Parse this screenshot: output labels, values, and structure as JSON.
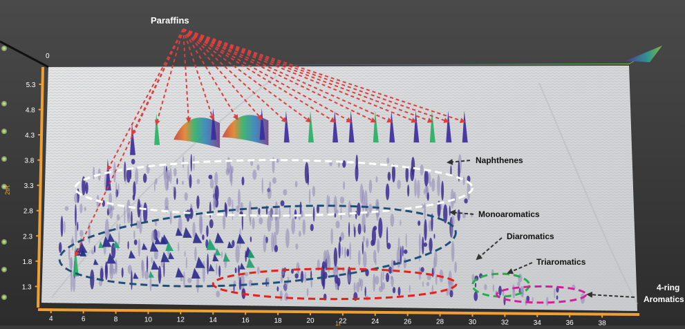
{
  "chart_data": {
    "type": "scatter",
    "title": "",
    "xlabel": "",
    "ylabel": "",
    "x_ticks": [
      4,
      6,
      8,
      10,
      12,
      14,
      16,
      18,
      20,
      22,
      24,
      26,
      28,
      30,
      32,
      34,
      36,
      38
    ],
    "y_ticks": [
      1.3,
      1.8,
      2.3,
      2.8,
      3.3,
      3.8,
      4.3,
      4.8,
      5.3
    ],
    "y_top_label": "0",
    "xlim": [
      3.5,
      40
    ],
    "ylim": [
      0.95,
      5.6
    ],
    "paraffin_peaks": [
      {
        "x": 5.5,
        "y": 1.8
      },
      {
        "x": 7.5,
        "y": 3.5
      },
      {
        "x": 9,
        "y": 4.2
      },
      {
        "x": 10.5,
        "y": 4.4
      },
      {
        "x": 12.5,
        "y": 4.45
      },
      {
        "x": 14,
        "y": 4.5
      },
      {
        "x": 15.5,
        "y": 4.5
      },
      {
        "x": 17,
        "y": 4.5
      },
      {
        "x": 18.5,
        "y": 4.45
      },
      {
        "x": 20,
        "y": 4.45
      },
      {
        "x": 21.5,
        "y": 4.45
      },
      {
        "x": 22.5,
        "y": 4.45
      },
      {
        "x": 24,
        "y": 4.45
      },
      {
        "x": 25,
        "y": 4.45
      },
      {
        "x": 26.5,
        "y": 4.45
      },
      {
        "x": 27.5,
        "y": 4.45
      },
      {
        "x": 28.5,
        "y": 4.45
      },
      {
        "x": 29.5,
        "y": 4.45
      }
    ],
    "regions": [
      {
        "name": "Naphthenes",
        "color": "#ffffff",
        "x_range": [
          5.5,
          30
        ],
        "y_range": [
          2.7,
          3.8
        ]
      },
      {
        "name": "Monoaromatics",
        "color": "#1f4e79",
        "x_range": [
          4.5,
          29
        ],
        "y_range": [
          1.35,
          2.85
        ]
      },
      {
        "name": "Diaromatics",
        "color": "#e8201a",
        "x_range": [
          14,
          29
        ],
        "y_range": [
          1.05,
          1.65
        ]
      },
      {
        "name": "Triaromatics",
        "color": "#1fb04a",
        "x_range": [
          30,
          33.5
        ],
        "y_range": [
          1.1,
          1.55
        ]
      },
      {
        "name": "4-ring Aromatics",
        "color": "#d61e9c",
        "x_range": [
          31.5,
          37
        ],
        "y_range": [
          0.98,
          1.3
        ]
      }
    ]
  },
  "annotations": {
    "paraffins": "Paraffins",
    "naphthenes": "Naphthenes",
    "monoaromatics": "Monoaromatics",
    "diaromatics": "Diaromatics",
    "triaromatics": "Triaromatics",
    "four_ring_line1": "4-ring",
    "four_ring_line2": "Aromatics",
    "y_axis_fragment": "2tR",
    "x_axis_fragment": "1t"
  },
  "colors": {
    "background": "#3a3a3a",
    "axis": "#f0a030",
    "arrow": "#d94040",
    "plane": "#dcdcdc"
  }
}
